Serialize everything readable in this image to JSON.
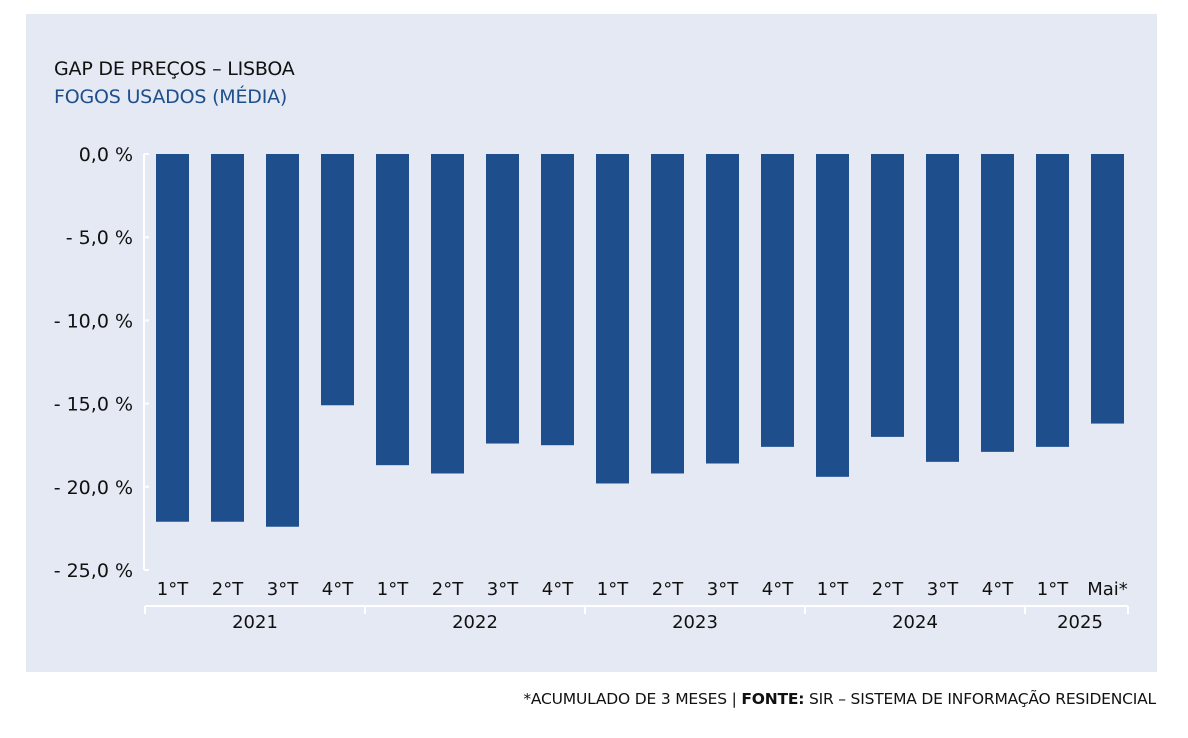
{
  "title": "GAP DE PREÇOS – LISBOA",
  "subtitle": "FOGOS USADOS (MÉDIA)",
  "footnote": {
    "note": "*ACUMULADO DE 3 MESES",
    "separator": " | ",
    "source_label": "FONTE:",
    "source": " SIR – SISTEMA DE INFORMAÇÃO RESIDENCIAL"
  },
  "colors": {
    "panel": "#e4e9f3",
    "bar": "#1e4f8c",
    "subtitle": "#1e4f8c",
    "text": "#111111"
  },
  "chart_data": {
    "type": "bar",
    "title": "GAP DE PREÇOS – LISBOA",
    "subtitle": "FOGOS USADOS (MÉDIA)",
    "xlabel": "",
    "ylabel": "",
    "ylim": [
      -25,
      0
    ],
    "y_ticks": [
      0,
      -5,
      -10,
      -15,
      -20,
      -25
    ],
    "y_tick_labels": [
      "0,0 %",
      "- 5,0 %",
      "- 10,0 %",
      "- 15,0 %",
      "- 20,0 %",
      "- 25,0 %"
    ],
    "grid": false,
    "categories": [
      "1°T",
      "2°T",
      "3°T",
      "4°T",
      "1°T",
      "2°T",
      "3°T",
      "4°T",
      "1°T",
      "2°T",
      "3°T",
      "4°T",
      "1°T",
      "2°T",
      "3°T",
      "4°T",
      "1°T",
      "Mai*"
    ],
    "values": [
      -22.1,
      -22.1,
      -22.4,
      -15.1,
      -18.7,
      -19.2,
      -17.4,
      -17.5,
      -19.8,
      -19.2,
      -18.6,
      -17.6,
      -19.4,
      -17.0,
      -18.5,
      -17.9,
      -17.6,
      -16.2
    ],
    "groups": [
      {
        "label": "2021",
        "count": 4
      },
      {
        "label": "2022",
        "count": 4
      },
      {
        "label": "2023",
        "count": 4
      },
      {
        "label": "2024",
        "count": 4
      },
      {
        "label": "2025",
        "count": 2
      }
    ]
  }
}
